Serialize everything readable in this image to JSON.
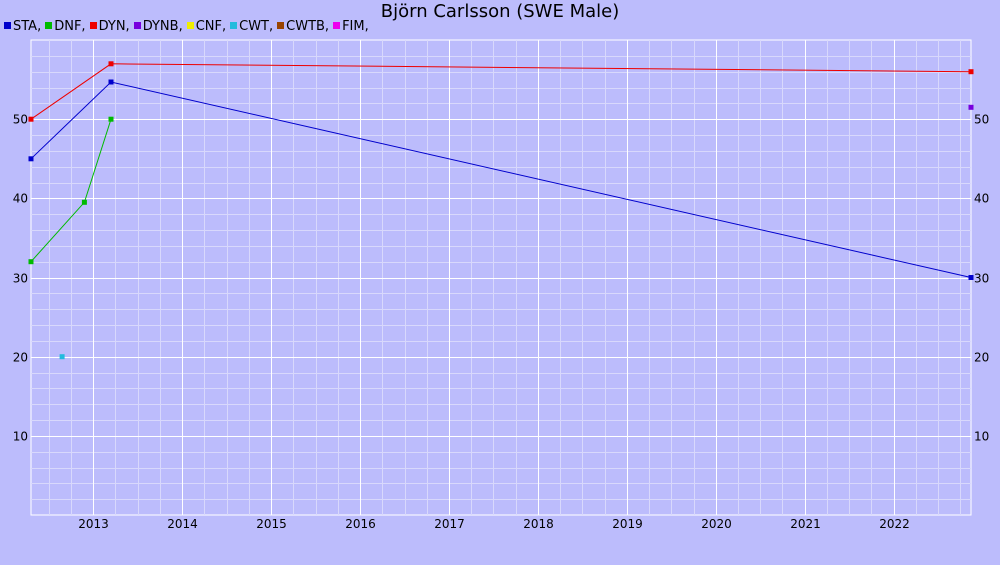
{
  "chart_data": {
    "type": "line",
    "title": "Björn Carlsson (SWE Male)",
    "xlabel": "",
    "ylabel": "",
    "xlim": [
      2012.3,
      2022.87
    ],
    "ylim": [
      0,
      60
    ],
    "grid": true,
    "legend_placement": "top-left",
    "x_ticks": [
      "2013",
      "2014",
      "2015",
      "2016",
      "2017",
      "2018",
      "2019",
      "2020",
      "2021",
      "2022"
    ],
    "y_ticks": [
      10,
      20,
      30,
      40,
      50
    ],
    "series": [
      {
        "name": "STA",
        "color": "#0000cc",
        "points": [
          [
            2012.3,
            45
          ],
          [
            2013.2,
            54.7
          ],
          [
            2022.87,
            30
          ]
        ]
      },
      {
        "name": "DNF",
        "color": "#00bb00",
        "points": [
          [
            2012.3,
            32
          ],
          [
            2012.9,
            39.5
          ],
          [
            2013.2,
            50
          ]
        ]
      },
      {
        "name": "DYN",
        "color": "#ee0000",
        "points": [
          [
            2012.3,
            50
          ],
          [
            2013.2,
            57
          ],
          [
            2022.87,
            56
          ]
        ]
      },
      {
        "name": "DYNB",
        "color": "#7700dd",
        "points": [
          [
            2022.87,
            51.5
          ]
        ]
      },
      {
        "name": "CNF",
        "color": "#eeee00",
        "points": []
      },
      {
        "name": "CWT",
        "color": "#22bbdd",
        "points": [
          [
            2012.65,
            20
          ]
        ]
      },
      {
        "name": "CWTB",
        "color": "#994400",
        "points": []
      },
      {
        "name": "FIM",
        "color": "#ee00ee",
        "points": []
      }
    ]
  }
}
